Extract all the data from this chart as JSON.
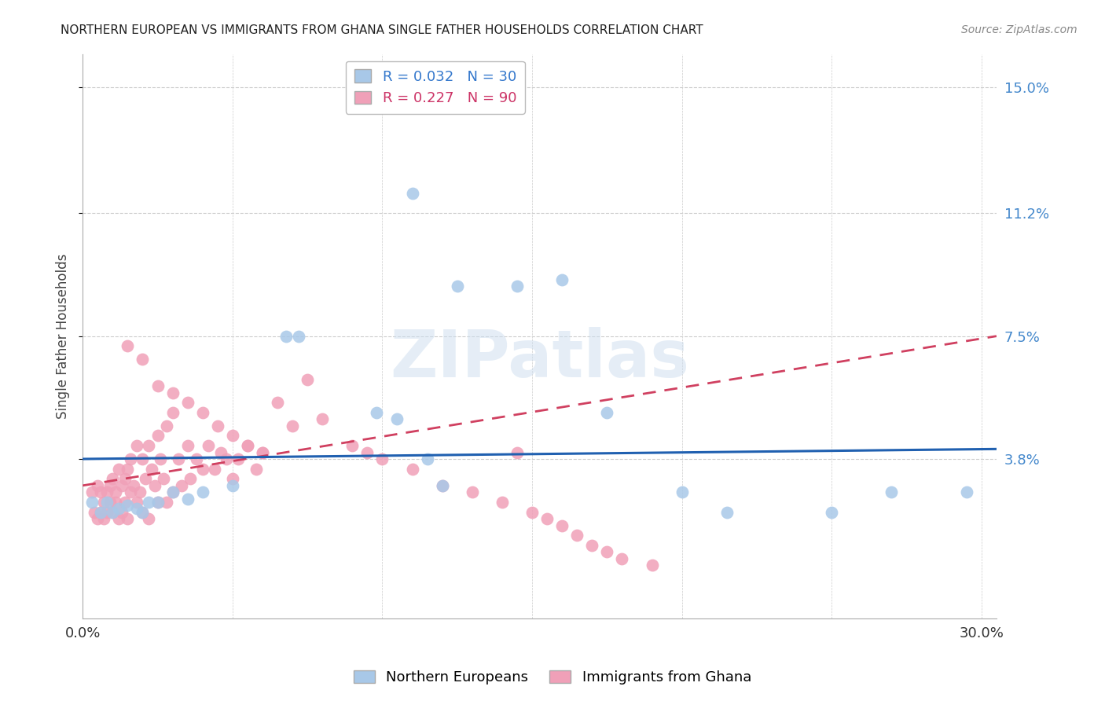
{
  "title": "NORTHERN EUROPEAN VS IMMIGRANTS FROM GHANA SINGLE FATHER HOUSEHOLDS CORRELATION CHART",
  "source": "Source: ZipAtlas.com",
  "ylabel": "Single Father Households",
  "xlim": [
    0.0,
    0.305
  ],
  "ylim": [
    -0.01,
    0.16
  ],
  "ytick_positions": [
    0.038,
    0.075,
    0.112,
    0.15
  ],
  "ytick_labels": [
    "3.8%",
    "7.5%",
    "11.2%",
    "15.0%"
  ],
  "xtick_positions": [
    0.0,
    0.05,
    0.1,
    0.15,
    0.2,
    0.25,
    0.3
  ],
  "xtick_labels": [
    "0.0%",
    "",
    "",
    "",
    "",
    "",
    "30.0%"
  ],
  "blue_R": 0.032,
  "blue_N": 30,
  "pink_R": 0.227,
  "pink_N": 90,
  "blue_color": "#a8c8e8",
  "pink_color": "#f0a0b8",
  "blue_line_color": "#2060b0",
  "pink_line_color": "#d04060",
  "grid_color": "#cccccc",
  "legend_label_blue": "Northern Europeans",
  "legend_label_pink": "Immigrants from Ghana",
  "blue_x": [
    0.003,
    0.006,
    0.008,
    0.01,
    0.012,
    0.015,
    0.018,
    0.02,
    0.022,
    0.025,
    0.03,
    0.035,
    0.04,
    0.05,
    0.068,
    0.072,
    0.098,
    0.105,
    0.125,
    0.145,
    0.175,
    0.2,
    0.215,
    0.25,
    0.27,
    0.295,
    0.11,
    0.115,
    0.12,
    0.16
  ],
  "blue_y": [
    0.025,
    0.022,
    0.025,
    0.022,
    0.023,
    0.024,
    0.023,
    0.022,
    0.025,
    0.025,
    0.028,
    0.026,
    0.028,
    0.03,
    0.075,
    0.075,
    0.052,
    0.05,
    0.09,
    0.09,
    0.052,
    0.028,
    0.022,
    0.022,
    0.028,
    0.028,
    0.118,
    0.038,
    0.03,
    0.092
  ],
  "pink_x": [
    0.003,
    0.004,
    0.005,
    0.005,
    0.006,
    0.006,
    0.007,
    0.007,
    0.008,
    0.008,
    0.009,
    0.009,
    0.01,
    0.01,
    0.011,
    0.011,
    0.012,
    0.012,
    0.013,
    0.013,
    0.014,
    0.014,
    0.015,
    0.015,
    0.016,
    0.016,
    0.017,
    0.018,
    0.018,
    0.019,
    0.02,
    0.02,
    0.021,
    0.022,
    0.022,
    0.023,
    0.024,
    0.025,
    0.025,
    0.026,
    0.027,
    0.028,
    0.028,
    0.03,
    0.03,
    0.032,
    0.033,
    0.035,
    0.036,
    0.038,
    0.04,
    0.042,
    0.044,
    0.046,
    0.048,
    0.05,
    0.052,
    0.055,
    0.058,
    0.06,
    0.065,
    0.07,
    0.075,
    0.08,
    0.09,
    0.095,
    0.1,
    0.11,
    0.12,
    0.13,
    0.14,
    0.145,
    0.15,
    0.155,
    0.16,
    0.165,
    0.17,
    0.175,
    0.18,
    0.19,
    0.015,
    0.02,
    0.025,
    0.03,
    0.035,
    0.04,
    0.045,
    0.05,
    0.055,
    0.06
  ],
  "pink_y": [
    0.028,
    0.022,
    0.02,
    0.03,
    0.022,
    0.028,
    0.02,
    0.025,
    0.022,
    0.028,
    0.025,
    0.03,
    0.022,
    0.032,
    0.025,
    0.028,
    0.02,
    0.035,
    0.022,
    0.03,
    0.025,
    0.032,
    0.02,
    0.035,
    0.028,
    0.038,
    0.03,
    0.025,
    0.042,
    0.028,
    0.022,
    0.038,
    0.032,
    0.02,
    0.042,
    0.035,
    0.03,
    0.025,
    0.045,
    0.038,
    0.032,
    0.025,
    0.048,
    0.028,
    0.052,
    0.038,
    0.03,
    0.042,
    0.032,
    0.038,
    0.035,
    0.042,
    0.035,
    0.04,
    0.038,
    0.032,
    0.038,
    0.042,
    0.035,
    0.04,
    0.055,
    0.048,
    0.062,
    0.05,
    0.042,
    0.04,
    0.038,
    0.035,
    0.03,
    0.028,
    0.025,
    0.04,
    0.022,
    0.02,
    0.018,
    0.015,
    0.012,
    0.01,
    0.008,
    0.006,
    0.072,
    0.068,
    0.06,
    0.058,
    0.055,
    0.052,
    0.048,
    0.045,
    0.042,
    0.04
  ],
  "blue_line_x": [
    0.0,
    0.305
  ],
  "blue_line_y": [
    0.038,
    0.041
  ],
  "pink_line_x": [
    0.0,
    0.305
  ],
  "pink_line_y": [
    0.03,
    0.075
  ]
}
